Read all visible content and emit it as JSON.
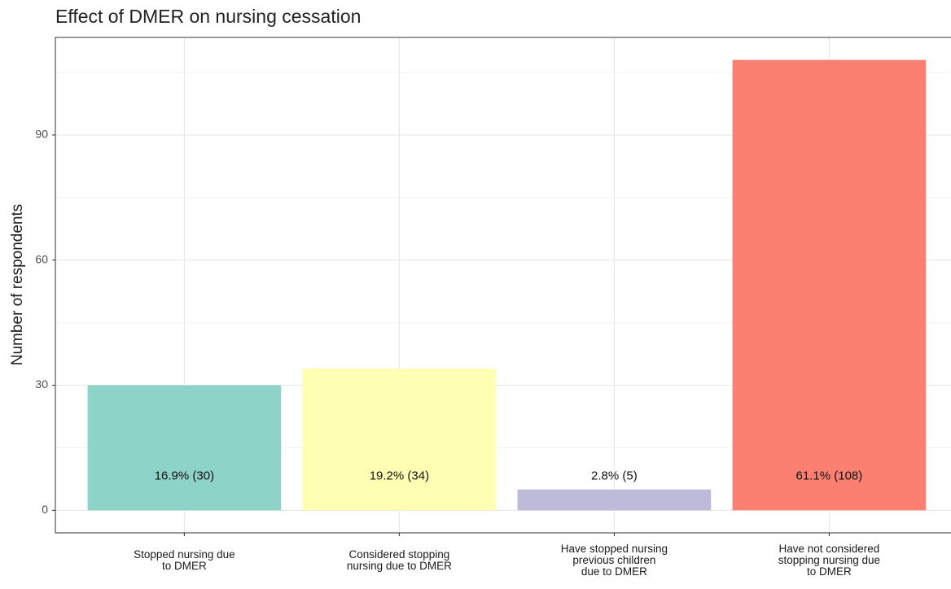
{
  "chart_data": {
    "type": "bar",
    "title": "Effect of DMER on nursing cessation",
    "y_label": "Number of respondents",
    "categories": [
      "Stopped nursing due\nto DMER",
      "Considered stopping\nnursing due to DMER",
      "Have stopped nursing\nprevious children\ndue to DMER",
      "Have not considered\nstopping nursing due\nto DMER"
    ],
    "values": [
      30,
      34,
      5,
      108
    ],
    "value_labels": [
      "16.9% (30)",
      "19.2% (34)",
      "2.8% (5)",
      "61.1% (108)"
    ],
    "colors": [
      "#8dd3c7",
      "#ffffb3",
      "#bebada",
      "#fb8072"
    ],
    "ylim": [
      -5.4,
      113.4
    ],
    "yticks": [
      0,
      30,
      60,
      90
    ],
    "minor_yticks": [
      15,
      45,
      75,
      105
    ],
    "grid": true
  }
}
